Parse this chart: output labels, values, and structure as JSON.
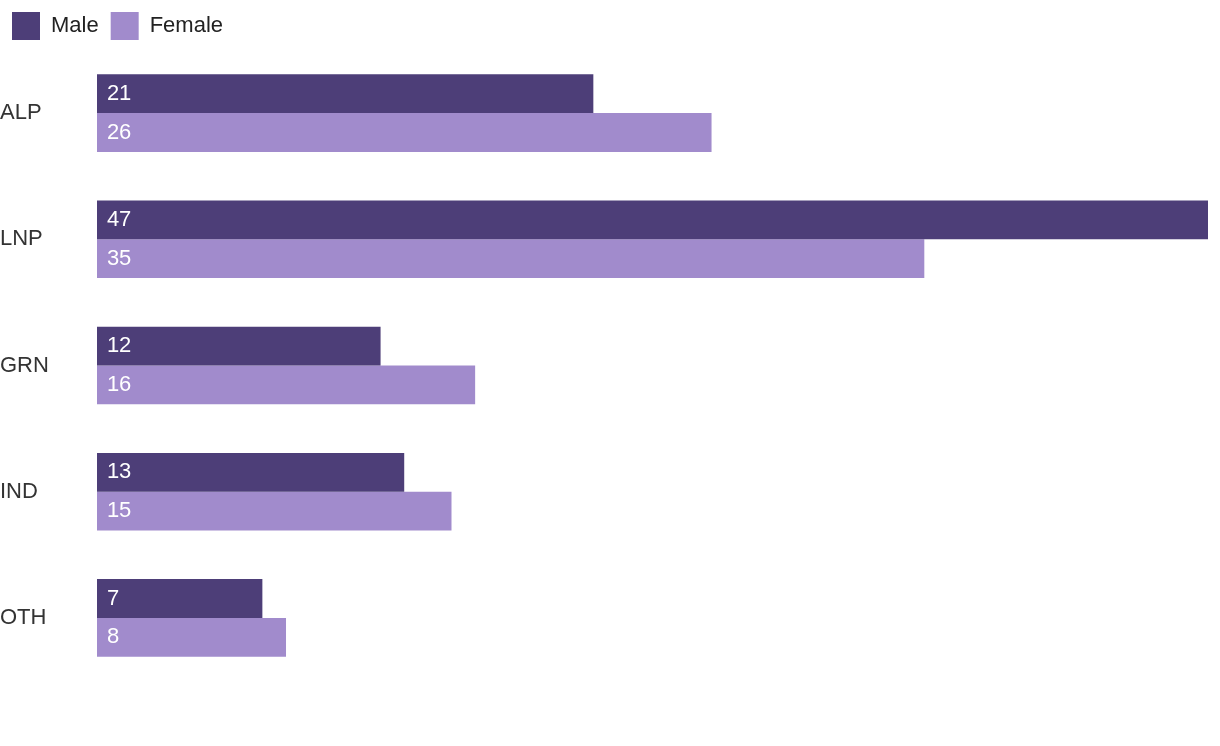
{
  "chart_data": {
    "type": "bar",
    "orientation": "horizontal",
    "categories": [
      "ALP",
      "LNP",
      "GRN",
      "IND",
      "OTH"
    ],
    "series": [
      {
        "name": "Male",
        "color": "#4d3e78",
        "values": [
          21,
          47,
          12,
          13,
          7
        ]
      },
      {
        "name": "Female",
        "color": "#a18bcc",
        "values": [
          26,
          35,
          16,
          15,
          8
        ]
      }
    ],
    "xlim": [
      0,
      47
    ],
    "tick_labels": "y",
    "legend": "top left",
    "data_labels": true
  }
}
